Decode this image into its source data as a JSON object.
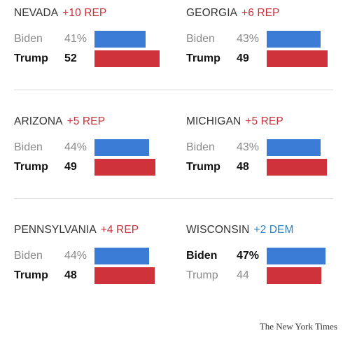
{
  "chart_data": {
    "type": "bar",
    "series_names": [
      "Biden",
      "Trump"
    ],
    "colors": {
      "Biden": "#3a7bd5",
      "Trump": "#d0323b",
      "rep_text": "#c8313a",
      "dem_text": "#2f80c0"
    },
    "states": [
      {
        "state": "NEVADA",
        "margin": "+10 REP",
        "party": "rep",
        "rows": [
          {
            "name": "Biden",
            "label": "41%",
            "value": 41,
            "winner": false
          },
          {
            "name": "Trump",
            "label": "52",
            "value": 52,
            "winner": true
          }
        ]
      },
      {
        "state": "GEORGIA",
        "margin": "+6 REP",
        "party": "rep",
        "rows": [
          {
            "name": "Biden",
            "label": "43%",
            "value": 43,
            "winner": false
          },
          {
            "name": "Trump",
            "label": "49",
            "value": 49,
            "winner": true
          }
        ]
      },
      {
        "state": "ARIZONA",
        "margin": "+5 REP",
        "party": "rep",
        "rows": [
          {
            "name": "Biden",
            "label": "44%",
            "value": 44,
            "winner": false
          },
          {
            "name": "Trump",
            "label": "49",
            "value": 49,
            "winner": true
          }
        ]
      },
      {
        "state": "MICHIGAN",
        "margin": "+5 REP",
        "party": "rep",
        "rows": [
          {
            "name": "Biden",
            "label": "43%",
            "value": 43,
            "winner": false
          },
          {
            "name": "Trump",
            "label": "48",
            "value": 48,
            "winner": true
          }
        ]
      },
      {
        "state": "PENNSYLVANIA",
        "margin": "+4 REP",
        "party": "rep",
        "rows": [
          {
            "name": "Biden",
            "label": "44%",
            "value": 44,
            "winner": false
          },
          {
            "name": "Trump",
            "label": "48",
            "value": 48,
            "winner": true
          }
        ]
      },
      {
        "state": "WISCONSIN",
        "margin": "+2 DEM",
        "party": "dem",
        "rows": [
          {
            "name": "Biden",
            "label": "47%",
            "value": 47,
            "winner": true
          },
          {
            "name": "Trump",
            "label": "44",
            "value": 44,
            "winner": false
          }
        ]
      }
    ]
  },
  "credit": "The New York Times"
}
